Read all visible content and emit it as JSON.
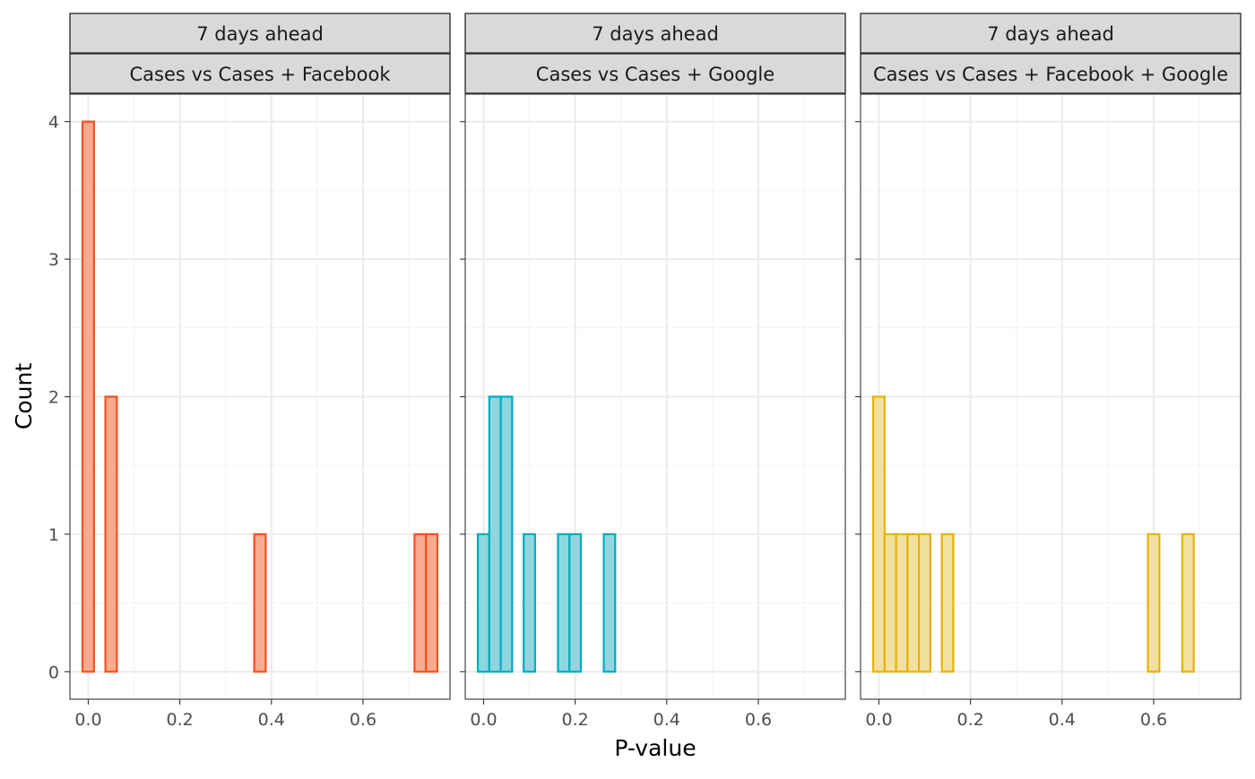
{
  "chart_data": {
    "type": "bar",
    "xlabel": "P-value",
    "ylabel": "Count",
    "xlim": [
      -0.04,
      0.79
    ],
    "ylim": [
      -0.2,
      4.2
    ],
    "x_ticks": [
      "0.0",
      "0.2",
      "0.4",
      "0.6"
    ],
    "x_tick_values": [
      0,
      0.2,
      0.4,
      0.6
    ],
    "y_ticks": [
      "0",
      "1",
      "2",
      "3",
      "4"
    ],
    "y_tick_values": [
      0,
      1,
      2,
      3,
      4
    ],
    "grid": true,
    "bin_width": 0.025,
    "panels": [
      {
        "strip_top": "7 days ahead",
        "strip_bottom": "Cases vs Cases + Facebook",
        "color": "#f4511e",
        "fill": "#f9ab8f",
        "bin_start": -0.0125,
        "counts": [
          4,
          0,
          2,
          0,
          0,
          0,
          0,
          0,
          0,
          0,
          0,
          0,
          0,
          0,
          0,
          1,
          0,
          0,
          0,
          0,
          0,
          0,
          0,
          0,
          0,
          0,
          0,
          0,
          0,
          1,
          1
        ]
      },
      {
        "strip_top": "7 days ahead",
        "strip_bottom": "Cases vs Cases + Google",
        "color": "#00acc1",
        "fill": "#8fd6df",
        "bin_start": -0.0125,
        "counts": [
          1,
          2,
          2,
          0,
          1,
          0,
          0,
          1,
          1,
          0,
          0,
          1,
          0,
          0,
          0,
          0,
          0,
          0,
          0,
          0,
          0,
          0,
          0,
          0,
          0,
          0,
          0,
          0,
          0,
          0,
          0
        ]
      },
      {
        "strip_top": "7 days ahead",
        "strip_bottom": "Cases vs Cases + Facebook + Google",
        "color": "#e5b300",
        "fill": "#f2e0a0",
        "bin_start": -0.0125,
        "counts": [
          2,
          1,
          1,
          1,
          1,
          0,
          1,
          0,
          0,
          0,
          0,
          0,
          0,
          0,
          0,
          0,
          0,
          0,
          0,
          0,
          0,
          0,
          0,
          0,
          1,
          0,
          0,
          1,
          0,
          0,
          0
        ]
      }
    ]
  }
}
